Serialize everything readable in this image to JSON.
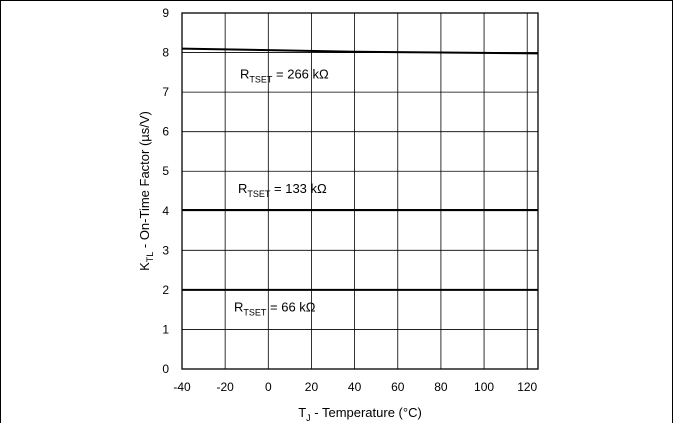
{
  "chart_data": {
    "type": "line",
    "x_tick_labels": [
      "-40",
      "-20",
      "0",
      "20",
      "40",
      "60",
      "80",
      "100",
      "120"
    ],
    "y_tick_labels": [
      "0",
      "1",
      "2",
      "3",
      "4",
      "5",
      "6",
      "7",
      "8",
      "9"
    ],
    "xlim": [
      -40,
      125
    ],
    "ylim": [
      0,
      9
    ],
    "grid": true,
    "xlabel": {
      "main": "T",
      "sub": "J",
      "rest": " - Temperature (°C)"
    },
    "ylabel": {
      "main": "K",
      "sub": "TL",
      "rest": " - On-Time Factor (µs/V)"
    },
    "series": [
      {
        "label_main": "R",
        "label_sub": "TSET",
        "label_rest": " = 266 kΩ",
        "x": [
          -40,
          0,
          40,
          80,
          125
        ],
        "y": [
          8.1,
          8.06,
          8.02,
          8.0,
          7.98
        ]
      },
      {
        "label_main": "R",
        "label_sub": "TSET",
        "label_rest": " = 133 kΩ",
        "x": [
          -40,
          0,
          40,
          80,
          125
        ],
        "y": [
          4.02,
          4.02,
          4.02,
          4.02,
          4.02
        ]
      },
      {
        "label_main": "R",
        "label_sub": "TSET",
        "label_rest": " = 66 kΩ",
        "x": [
          -40,
          0,
          40,
          80,
          125
        ],
        "y": [
          2.0,
          2.0,
          2.0,
          2.0,
          2.0
        ]
      }
    ],
    "line_color": "#000000",
    "grid_color": "#000000"
  }
}
